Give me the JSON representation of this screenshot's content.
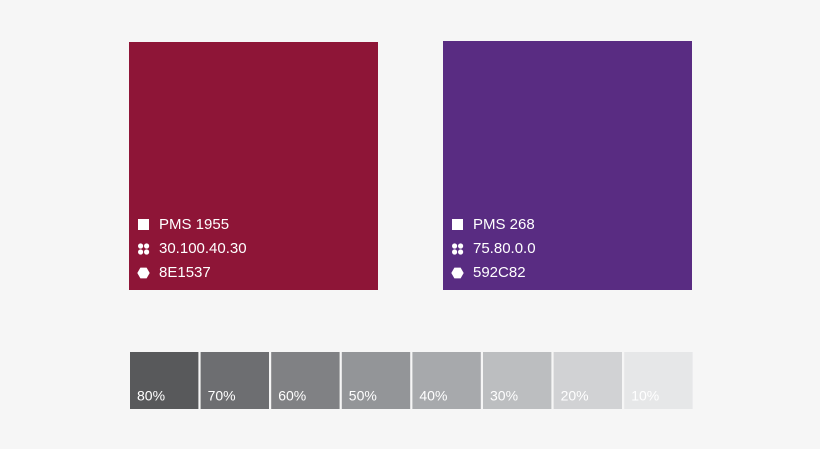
{
  "swatches": [
    {
      "pms": "PMS 1955",
      "cmyk": "30.100.40.30",
      "hex": "8E1537"
    },
    {
      "pms": "PMS 268",
      "cmyk": "75.80.0.0",
      "hex": "592C82"
    }
  ],
  "tints": [
    {
      "label": "80%",
      "color": "#58595b"
    },
    {
      "label": "70%",
      "color": "#6d6e71"
    },
    {
      "label": "60%",
      "color": "#808184"
    },
    {
      "label": "50%",
      "color": "#939598"
    },
    {
      "label": "40%",
      "color": "#a7a9ac"
    },
    {
      "label": "30%",
      "color": "#bcbec0"
    },
    {
      "label": "20%",
      "color": "#d1d2d4"
    },
    {
      "label": "10%",
      "color": "#e6e7e8"
    }
  ]
}
